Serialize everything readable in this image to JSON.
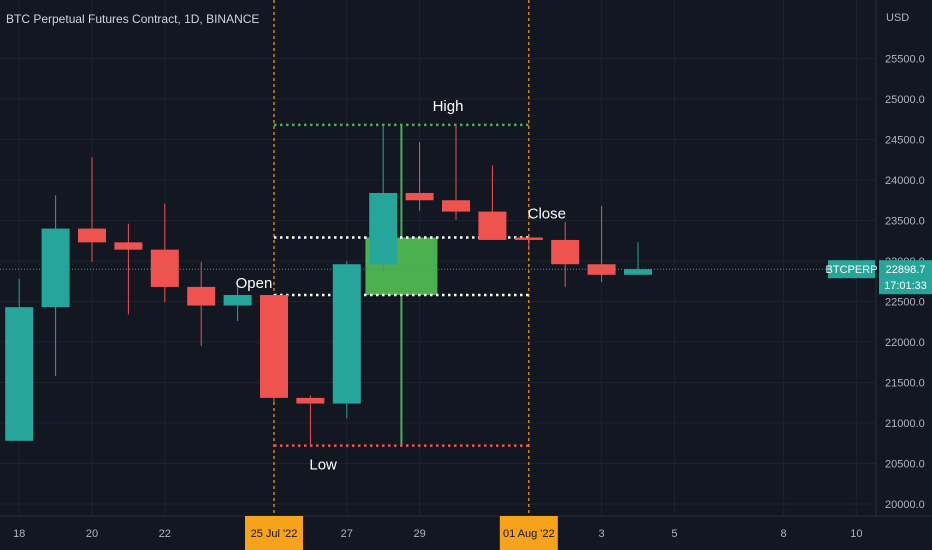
{
  "title": "BTC Perpetual Futures Contract, 1D, BINANCE",
  "colors": {
    "background": "#131722",
    "up": "#26a69a",
    "down": "#ef5350",
    "weekly_candle": "#4caf50",
    "vline": "#f7a21b",
    "high_line": "#4caf50",
    "low_line": "#ef5350",
    "mid_line": "#ffffff",
    "axis_text": "#b2b5be"
  },
  "chart_data": {
    "type": "candlestick",
    "currency": "USD",
    "ylim": [
      19900,
      26200
    ],
    "y_ticks": [
      20000,
      20500,
      21000,
      21500,
      22000,
      22500,
      23000,
      23500,
      24000,
      24500,
      25000,
      25500
    ],
    "y_tick_labels": [
      "20000.0",
      "20500.0",
      "21000.0",
      "21500.0",
      "22000.0",
      "22500.0",
      "23000.0",
      "23500.0",
      "24000.0",
      "24500.0",
      "25000.0",
      "25500.0"
    ],
    "x_ticks": [
      {
        "label": "18",
        "day": -7
      },
      {
        "label": "20",
        "day": -5
      },
      {
        "label": "22",
        "day": -3
      },
      {
        "label": "25 Jul '22",
        "day": 0,
        "highlight": true
      },
      {
        "label": "27",
        "day": 2
      },
      {
        "label": "29",
        "day": 4
      },
      {
        "label": "01 Aug '22",
        "day": 7,
        "highlight": true
      },
      {
        "label": "3",
        "day": 9
      },
      {
        "label": "5",
        "day": 11
      },
      {
        "label": "8",
        "day": 14
      },
      {
        "label": "10",
        "day": 16
      }
    ],
    "candles": [
      {
        "day": -7,
        "open": 20780,
        "high": 22780,
        "low": 20780,
        "close": 22430
      },
      {
        "day": -6,
        "open": 22430,
        "high": 23810,
        "low": 21580,
        "close": 23400
      },
      {
        "day": -5,
        "open": 23400,
        "high": 24280,
        "low": 22990,
        "close": 23230
      },
      {
        "day": -4,
        "open": 23230,
        "high": 23460,
        "low": 22340,
        "close": 23140
      },
      {
        "day": -3,
        "open": 23140,
        "high": 23710,
        "low": 22490,
        "close": 22680
      },
      {
        "day": -2,
        "open": 22680,
        "high": 22990,
        "low": 21950,
        "close": 22450
      },
      {
        "day": -1,
        "open": 22450,
        "high": 22720,
        "low": 22260,
        "close": 22580
      },
      {
        "day": 0,
        "open": 22580,
        "high": 22580,
        "low": 21260,
        "close": 21310
      },
      {
        "day": 1,
        "open": 21310,
        "high": 21340,
        "low": 20720,
        "close": 21240
      },
      {
        "day": 2,
        "open": 21240,
        "high": 23000,
        "low": 21060,
        "close": 22960
      },
      {
        "day": 3,
        "open": 22960,
        "high": 24680,
        "low": 22860,
        "close": 23840
      },
      {
        "day": 4,
        "open": 23840,
        "high": 24470,
        "low": 23620,
        "close": 23750
      },
      {
        "day": 5,
        "open": 23750,
        "high": 24680,
        "low": 23510,
        "close": 23610
      },
      {
        "day": 6,
        "open": 23610,
        "high": 24180,
        "low": 23260,
        "close": 23260
      },
      {
        "day": 7,
        "open": 23290,
        "high": 23310,
        "low": 23130,
        "close": 23260
      },
      {
        "day": 8,
        "open": 23260,
        "high": 23480,
        "low": 22680,
        "close": 22960
      },
      {
        "day": 9,
        "open": 22960,
        "high": 23680,
        "low": 22740,
        "close": 22830
      },
      {
        "day": 10,
        "open": 22830,
        "high": 23230,
        "low": 22830,
        "close": 22898.7
      }
    ],
    "weekly_candle": {
      "start_day": 0,
      "end_day": 7,
      "open": 22580,
      "high": 24680,
      "low": 20720,
      "close": 23290
    },
    "levels": {
      "high": 24680,
      "open": 22580,
      "close": 23290,
      "low": 20720
    },
    "annotations": {
      "high": "High",
      "open": "Open",
      "close": "Close",
      "low": "Low"
    },
    "vertical_lines": [
      0,
      7
    ],
    "current_price": {
      "symbol": "BTCPERP",
      "price": "22898.7",
      "value": 22898.7,
      "countdown": "17:01:33"
    }
  }
}
